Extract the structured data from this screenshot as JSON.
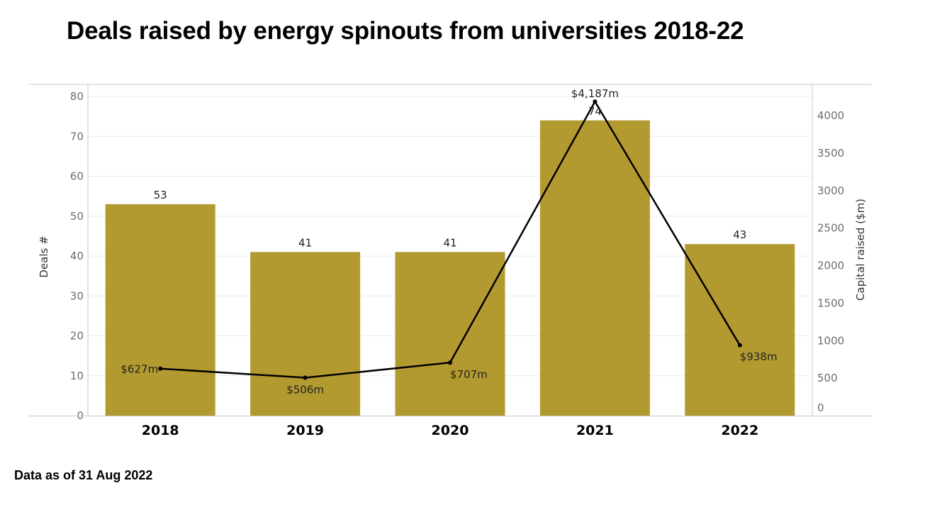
{
  "title": "Deals raised by energy spinouts from universities 2018-22",
  "footnote": "Data as of 31 Aug 2022",
  "colors": {
    "bar": "#b39a30",
    "line": "#000000",
    "grid": "#ececec",
    "axis": "#c8c8c8"
  },
  "chart_data": {
    "type": "bar",
    "title": "Deals raised by energy spinouts from universities 2018-22",
    "categories": [
      "2018",
      "2019",
      "2020",
      "2021",
      "2022"
    ],
    "series": [
      {
        "name": "Deals #",
        "type": "bar",
        "axis": "left",
        "values": [
          53,
          41,
          41,
          74,
          43
        ],
        "labels": [
          "53",
          "41",
          "41",
          "74",
          "43"
        ]
      },
      {
        "name": "Capital raised ($m)",
        "type": "line",
        "axis": "right",
        "values": [
          627,
          506,
          707,
          4187,
          938
        ],
        "labels": [
          "$627m",
          "$506m",
          "$707m",
          "$4,187m",
          "$938m"
        ]
      }
    ],
    "xlabel": "",
    "ylabel": "Deals #",
    "ylabel_right": "Capital raised ($m)",
    "ylim": [
      0,
      80
    ],
    "ylim_right": [
      0,
      4000
    ],
    "yticks": [
      "0",
      "10",
      "20",
      "30",
      "40",
      "50",
      "60",
      "70",
      "80"
    ],
    "yticks_right": [
      "0",
      "500",
      "1000",
      "1500",
      "2000",
      "2500",
      "3000",
      "3500",
      "4000"
    ],
    "grid": true,
    "legend": "none"
  }
}
